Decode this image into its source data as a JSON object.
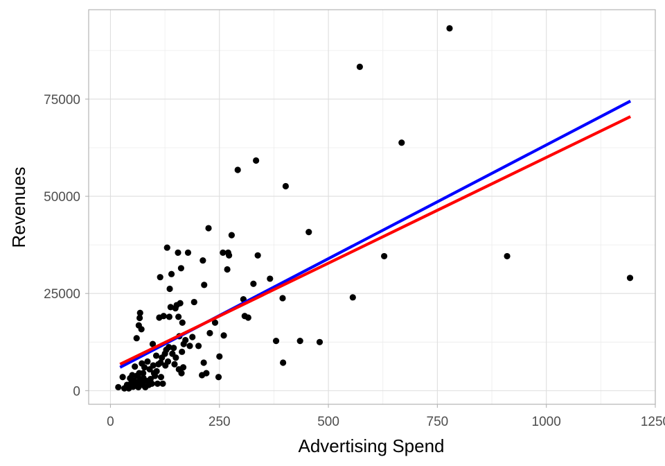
{
  "chart_data": {
    "type": "scatter",
    "xlabel": "Advertising Spend",
    "ylabel": "Revenues",
    "xlim": [
      -50,
      1250
    ],
    "ylim": [
      -3500,
      98000
    ],
    "x_ticks": [
      0,
      250,
      500,
      750,
      1000,
      1250
    ],
    "y_ticks": [
      0,
      25000,
      50000,
      75000
    ],
    "x_tick_labels": [
      "0",
      "250",
      "500",
      "750",
      "1000",
      "1250"
    ],
    "y_tick_labels": [
      "0",
      "25000",
      "50000",
      "75000"
    ],
    "grid": true,
    "points": [
      [
        18,
        900
      ],
      [
        28,
        3500
      ],
      [
        32,
        600
      ],
      [
        38,
        1500
      ],
      [
        42,
        600
      ],
      [
        45,
        3200
      ],
      [
        48,
        2000
      ],
      [
        50,
        4000
      ],
      [
        52,
        1000
      ],
      [
        54,
        2500
      ],
      [
        56,
        6200
      ],
      [
        58,
        1500
      ],
      [
        60,
        3800
      ],
      [
        60,
        13500
      ],
      [
        62,
        2200
      ],
      [
        64,
        900
      ],
      [
        65,
        16800
      ],
      [
        66,
        4500
      ],
      [
        67,
        18700
      ],
      [
        68,
        20000
      ],
      [
        69,
        3000
      ],
      [
        70,
        2000
      ],
      [
        71,
        15800
      ],
      [
        72,
        7000
      ],
      [
        74,
        1500
      ],
      [
        75,
        4500
      ],
      [
        76,
        3200
      ],
      [
        78,
        6000
      ],
      [
        80,
        900
      ],
      [
        82,
        2500
      ],
      [
        85,
        7500
      ],
      [
        88,
        1500
      ],
      [
        90,
        5500
      ],
      [
        92,
        3000
      ],
      [
        95,
        1800
      ],
      [
        97,
        12000
      ],
      [
        98,
        6500
      ],
      [
        100,
        4500
      ],
      [
        102,
        3800
      ],
      [
        105,
        9000
      ],
      [
        106,
        5000
      ],
      [
        108,
        1800
      ],
      [
        110,
        6800
      ],
      [
        112,
        18800
      ],
      [
        114,
        29200
      ],
      [
        115,
        7200
      ],
      [
        116,
        3500
      ],
      [
        118,
        8500
      ],
      [
        120,
        1800
      ],
      [
        122,
        19200
      ],
      [
        125,
        9500
      ],
      [
        126,
        6500
      ],
      [
        128,
        10500
      ],
      [
        130,
        36800
      ],
      [
        132,
        7500
      ],
      [
        134,
        11200
      ],
      [
        135,
        19000
      ],
      [
        136,
        26200
      ],
      [
        138,
        21500
      ],
      [
        140,
        30000
      ],
      [
        142,
        9500
      ],
      [
        145,
        11000
      ],
      [
        147,
        6800
      ],
      [
        149,
        21200
      ],
      [
        150,
        8500
      ],
      [
        152,
        22000
      ],
      [
        155,
        35500
      ],
      [
        156,
        19000
      ],
      [
        157,
        5500
      ],
      [
        158,
        14000
      ],
      [
        160,
        22500
      ],
      [
        162,
        31500
      ],
      [
        163,
        4500
      ],
      [
        164,
        10000
      ],
      [
        165,
        17500
      ],
      [
        167,
        6000
      ],
      [
        168,
        12000
      ],
      [
        172,
        13000
      ],
      [
        178,
        35500
      ],
      [
        182,
        11500
      ],
      [
        188,
        13800
      ],
      [
        192,
        22800
      ],
      [
        202,
        11500
      ],
      [
        210,
        4000
      ],
      [
        212,
        33500
      ],
      [
        214,
        7200
      ],
      [
        215,
        27200
      ],
      [
        220,
        4500
      ],
      [
        225,
        41800
      ],
      [
        228,
        14800
      ],
      [
        240,
        17500
      ],
      [
        248,
        3500
      ],
      [
        250,
        8800
      ],
      [
        258,
        35500
      ],
      [
        260,
        14200
      ],
      [
        268,
        31200
      ],
      [
        270,
        35500
      ],
      [
        272,
        34800
      ],
      [
        278,
        40000
      ],
      [
        292,
        56800
      ],
      [
        305,
        23500
      ],
      [
        308,
        19200
      ],
      [
        316,
        18800
      ],
      [
        328,
        27500
      ],
      [
        334,
        59200
      ],
      [
        338,
        34800
      ],
      [
        366,
        28800
      ],
      [
        380,
        12800
      ],
      [
        395,
        23800
      ],
      [
        396,
        7200
      ],
      [
        402,
        52600
      ],
      [
        435,
        12800
      ],
      [
        455,
        40800
      ],
      [
        480,
        12500
      ],
      [
        556,
        24000
      ],
      [
        572,
        83300
      ],
      [
        628,
        34600
      ],
      [
        668,
        63800
      ],
      [
        778,
        93200
      ],
      [
        910,
        34600
      ],
      [
        1192,
        29000
      ]
    ],
    "series": [
      {
        "kind": "trend-line",
        "color": "#0000ff",
        "x": [
          22,
          1193
        ],
        "y": [
          6000,
          74500
        ]
      },
      {
        "kind": "trend-line",
        "color": "#ff0000",
        "x": [
          22,
          1193
        ],
        "y": [
          6800,
          70500
        ]
      }
    ],
    "point_color": "#000000"
  }
}
